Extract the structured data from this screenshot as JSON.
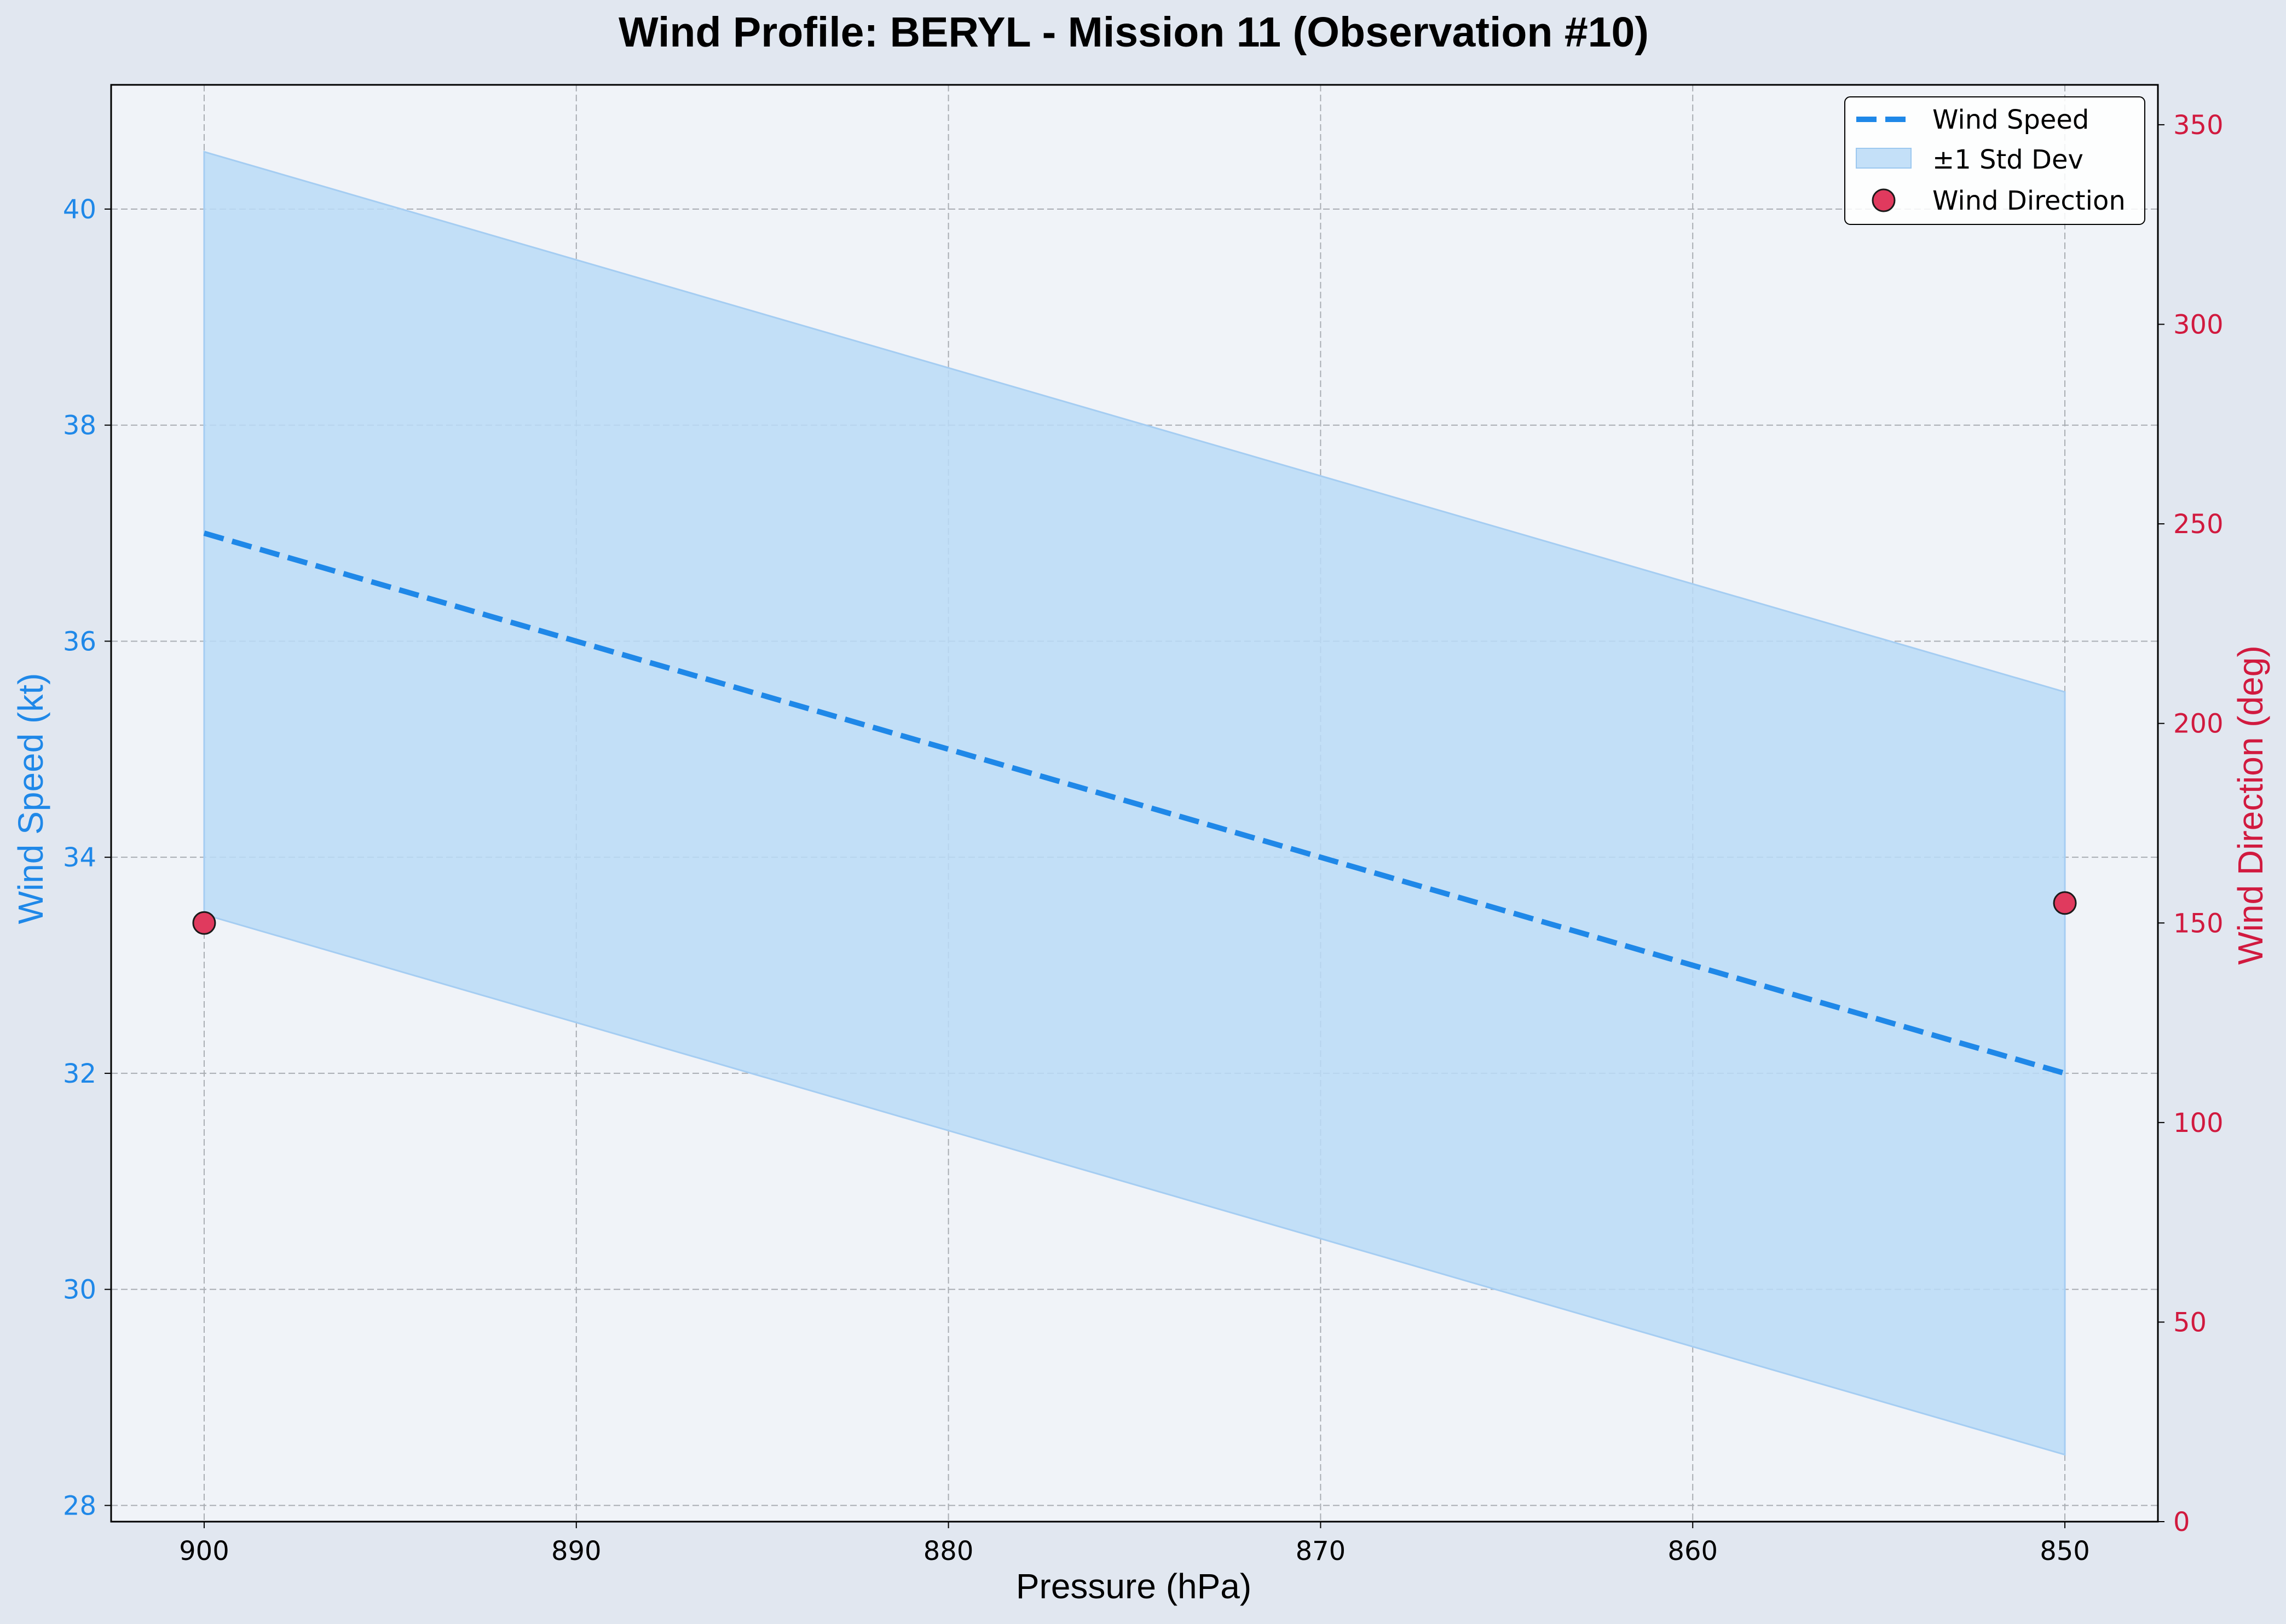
{
  "chart_data": {
    "type": "line",
    "title": "Wind Profile: BERYL - Mission 11 (Observation #10)",
    "xlabel": "Pressure (hPa)",
    "ylabel": "Wind Speed (kt)",
    "y2label": "Wind Direction (deg)",
    "x_inverted": true,
    "xlim": [
      902.5,
      847.5
    ],
    "ylim": [
      27.85,
      41.15
    ],
    "y2lim": [
      0,
      360
    ],
    "xticks": [
      900,
      890,
      880,
      870,
      860,
      850
    ],
    "yticks": [
      28,
      30,
      32,
      34,
      36,
      38,
      40
    ],
    "y2ticks": [
      0,
      50,
      100,
      150,
      200,
      250,
      300,
      350
    ],
    "grid": true,
    "legend_position": "upper right",
    "colors": {
      "speed": "#1f88e8",
      "band_fill": "#badaf7",
      "direction": "#e03a5e",
      "direction_edge": "#1a1a1a",
      "right_axis": "#d11a3f",
      "plot_bg": "#f0f3f8",
      "figure_bg": "#e1e7f0"
    },
    "x": [
      900,
      850
    ],
    "series": [
      {
        "name": "Wind Speed",
        "type": "line",
        "style": "dashed",
        "axis": "left",
        "values": [
          37.0,
          32.0
        ]
      },
      {
        "name": "±1 Std Dev",
        "type": "band",
        "axis": "left",
        "lower": [
          33.47,
          28.47
        ],
        "upper": [
          40.53,
          35.53
        ]
      },
      {
        "name": "Wind Direction",
        "type": "scatter",
        "axis": "right",
        "values": [
          150,
          155
        ]
      }
    ]
  }
}
